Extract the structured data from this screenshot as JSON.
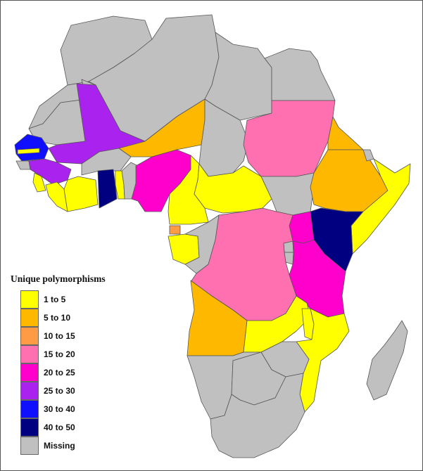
{
  "legend": {
    "title": "Unique polymorphisms",
    "items": [
      {
        "label": "1 to 5",
        "color": "#ffff00"
      },
      {
        "label": "5 to 10",
        "color": "#ffb800"
      },
      {
        "label": "10 to 15",
        "color": "#ff9a45"
      },
      {
        "label": "15 to 20",
        "color": "#ff70b0"
      },
      {
        "label": "20 to 25",
        "color": "#ff00cc"
      },
      {
        "label": "25 to 30",
        "color": "#aa22ee"
      },
      {
        "label": "30 to 40",
        "color": "#1010ff"
      },
      {
        "label": "40 to 50",
        "color": "#000080"
      },
      {
        "label": "Missing",
        "color": "#c0c0c0"
      }
    ]
  },
  "regions": [
    {
      "name": "Morocco",
      "category": "Missing"
    },
    {
      "name": "Algeria",
      "category": "Missing"
    },
    {
      "name": "Libya",
      "category": "Missing"
    },
    {
      "name": "Egypt",
      "category": "Missing"
    },
    {
      "name": "Western Sahara",
      "category": "Missing"
    },
    {
      "name": "Mauritania",
      "category": "Missing"
    },
    {
      "name": "Mali",
      "category": "25 to 30"
    },
    {
      "name": "Niger",
      "category": "5 to 10"
    },
    {
      "name": "Chad",
      "category": "Missing"
    },
    {
      "name": "Sudan",
      "category": "15 to 20"
    },
    {
      "name": "Senegal",
      "category": "30 to 40"
    },
    {
      "name": "Gambia",
      "category": "1 to 5"
    },
    {
      "name": "Guinea-Bissau",
      "category": "Missing"
    },
    {
      "name": "Guinea",
      "category": "25 to 30"
    },
    {
      "name": "Sierra Leone",
      "category": "1 to 5"
    },
    {
      "name": "Liberia",
      "category": "1 to 5"
    },
    {
      "name": "Cote d'Ivoire",
      "category": "1 to 5"
    },
    {
      "name": "Burkina Faso",
      "category": "Missing"
    },
    {
      "name": "Ghana",
      "category": "40 to 50"
    },
    {
      "name": "Togo",
      "category": "1 to 5"
    },
    {
      "name": "Benin",
      "category": "Missing"
    },
    {
      "name": "Nigeria",
      "category": "20 to 25"
    },
    {
      "name": "Cameroon",
      "category": "1 to 5"
    },
    {
      "name": "Central African Republic",
      "category": "1 to 5"
    },
    {
      "name": "South Sudan",
      "category": "Missing"
    },
    {
      "name": "Eritrea",
      "category": "5 to 10"
    },
    {
      "name": "Ethiopia",
      "category": "5 to 10"
    },
    {
      "name": "Djibouti",
      "category": "Missing"
    },
    {
      "name": "Somalia",
      "category": "1 to 5"
    },
    {
      "name": "Kenya",
      "category": "40 to 50"
    },
    {
      "name": "Uganda",
      "category": "20 to 25"
    },
    {
      "name": "Rwanda",
      "category": "Missing"
    },
    {
      "name": "Burundi",
      "category": "Missing"
    },
    {
      "name": "Tanzania",
      "category": "20 to 25"
    },
    {
      "name": "Equatorial Guinea",
      "category": "10 to 15"
    },
    {
      "name": "Gabon",
      "category": "1 to 5"
    },
    {
      "name": "Republic of Congo",
      "category": "Missing"
    },
    {
      "name": "DR Congo",
      "category": "15 to 20"
    },
    {
      "name": "Angola",
      "category": "5 to 10"
    },
    {
      "name": "Zambia",
      "category": "1 to 5"
    },
    {
      "name": "Malawi",
      "category": "1 to 5"
    },
    {
      "name": "Mozambique",
      "category": "1 to 5"
    },
    {
      "name": "Zimbabwe",
      "category": "Missing"
    },
    {
      "name": "Namibia",
      "category": "Missing"
    },
    {
      "name": "Botswana",
      "category": "Missing"
    },
    {
      "name": "South Africa",
      "category": "Missing"
    },
    {
      "name": "Madagascar",
      "category": "Missing"
    }
  ]
}
